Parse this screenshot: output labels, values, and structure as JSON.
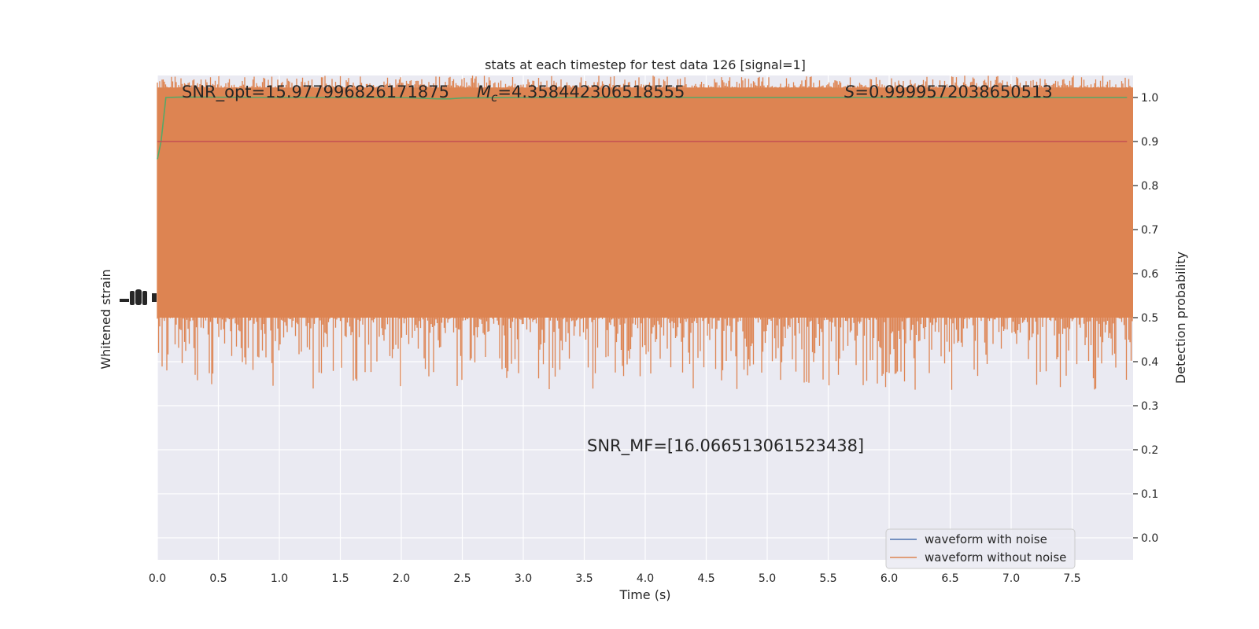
{
  "chart_data": {
    "type": "line",
    "title": "stats at each timestep for test data 126 [signal=1]",
    "xlabel": "Time (s)",
    "ylabel_left": "Whitened strain",
    "ylabel_right": "Detection probability",
    "xlim": [
      0.0,
      8.0
    ],
    "ylim_left": [
      -1.0,
      1.0
    ],
    "ylim_right": [
      -0.05,
      1.05
    ],
    "x_ticks": [
      "0.0",
      "0.5",
      "1.0",
      "1.5",
      "2.0",
      "2.5",
      "3.0",
      "3.5",
      "4.0",
      "4.5",
      "5.0",
      "5.5",
      "6.0",
      "6.5",
      "7.0",
      "7.5"
    ],
    "x_tick_values": [
      0.0,
      0.5,
      1.0,
      1.5,
      2.0,
      2.5,
      3.0,
      3.5,
      4.0,
      4.5,
      5.0,
      5.5,
      6.0,
      6.5,
      7.0,
      7.5
    ],
    "y_right_ticks": [
      "0.0",
      "0.1",
      "0.2",
      "0.3",
      "0.4",
      "0.5",
      "0.6",
      "0.7",
      "0.8",
      "0.9",
      "1.0"
    ],
    "y_right_tick_values": [
      0.0,
      0.1,
      0.2,
      0.3,
      0.4,
      0.5,
      0.6,
      0.7,
      0.8,
      0.9,
      1.0
    ],
    "grid": true,
    "legend_position": "lower-right",
    "annotations": {
      "snr_opt": "SNR_opt=15.977996826171875",
      "mc_symbol": "M",
      "mc_subscript": "c",
      "mc_value": "=4.358442306518555",
      "s_symbol": "S",
      "s_value": "=0.9999572038650513",
      "snr_mf": "SNR_MF=[16.066513061523438]"
    },
    "series": [
      {
        "name": "waveform with noise",
        "color": "#4c72b0",
        "description_values": "noise band roughly spanning whitened strain -0.4 to 0.55"
      },
      {
        "name": "waveform without noise",
        "color": "#dd8452",
        "band_core": [
          0.0,
          0.95
        ],
        "band_envelope": [
          -0.3,
          1.0
        ]
      },
      {
        "color": "#55a868",
        "x": [
          0.0,
          0.03,
          0.07,
          0.2,
          1.0,
          2.0,
          2.3,
          2.4,
          2.5,
          3.0,
          4.0,
          5.0,
          6.0,
          7.0,
          7.95
        ],
        "y": [
          0.86,
          0.9,
          1.0,
          1.001,
          1.0,
          1.0,
          0.997,
          0.997,
          0.999,
          1.0,
          1.0,
          1.0,
          1.0,
          1.0,
          1.0
        ]
      },
      {
        "color": "#c44e52",
        "x": [
          0.0,
          7.95
        ],
        "y": [
          0.9,
          0.9
        ]
      }
    ]
  }
}
